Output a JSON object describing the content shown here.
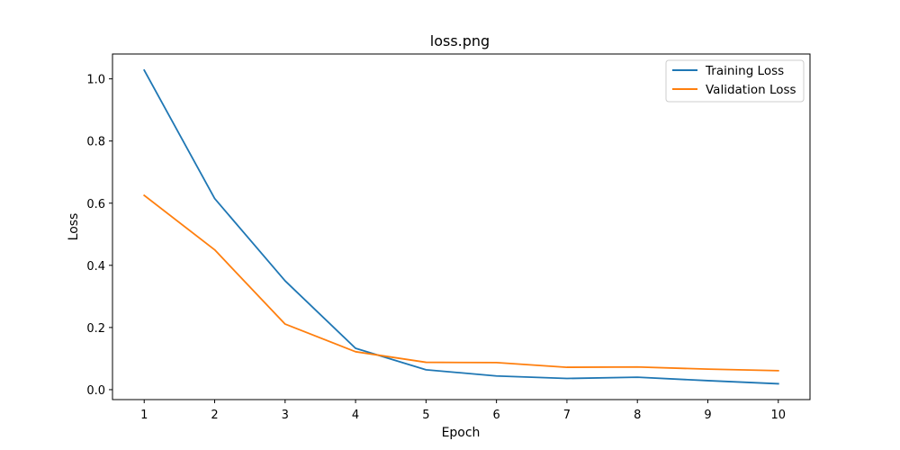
{
  "chart_data": {
    "type": "line",
    "title": "loss.png",
    "xlabel": "Epoch",
    "ylabel": "Loss",
    "x": [
      1,
      2,
      3,
      4,
      5,
      6,
      7,
      8,
      9,
      10
    ],
    "xlim": [
      0.55,
      10.45
    ],
    "ylim": [
      -0.032,
      1.08
    ],
    "xticks": [
      1,
      2,
      3,
      4,
      5,
      6,
      7,
      8,
      9,
      10
    ],
    "yticks": [
      0.0,
      0.2,
      0.4,
      0.6,
      0.8,
      1.0
    ],
    "ytick_labels": [
      "0.0",
      "0.2",
      "0.4",
      "0.6",
      "0.8",
      "1.0"
    ],
    "grid": false,
    "legend_position": "top-right",
    "series": [
      {
        "name": "Training Loss",
        "color": "#1f77b4",
        "values": [
          1.028,
          0.615,
          0.35,
          0.133,
          0.064,
          0.044,
          0.036,
          0.04,
          0.029,
          0.019
        ]
      },
      {
        "name": "Validation Loss",
        "color": "#ff7f0e",
        "values": [
          0.625,
          0.45,
          0.211,
          0.122,
          0.088,
          0.087,
          0.072,
          0.073,
          0.066,
          0.061
        ]
      }
    ]
  }
}
